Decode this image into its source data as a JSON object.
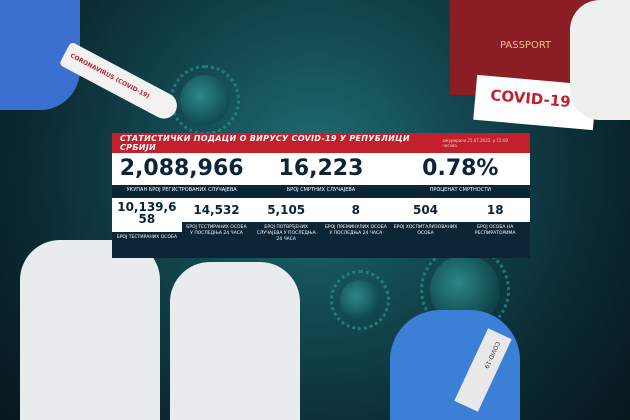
{
  "header": {
    "title": "СТАТИСТИЧКИ ПОДАЦИ О ВИРУСУ COVID-19 У РЕПУБЛИЦИ СРБИЈИ",
    "updated": "ажурирано 25.07.2022. у 15:00 часова"
  },
  "main": [
    {
      "value": "2,088,966",
      "label": "УКУПАН БРОЈ РЕГИСТРОВАНИХ СЛУЧАЈЕВА"
    },
    {
      "value": "16,223",
      "label": "БРОЈ СМРТНИХ СЛУЧАЈЕВА"
    },
    {
      "value": "0.78%",
      "label": "ПРОЦЕНАТ СМРТНОСТИ"
    }
  ],
  "details": [
    {
      "value": "10,139,658",
      "label": "БРОЈ ТЕСТИРАНИХ ОСОБА"
    },
    {
      "value": "14,532",
      "label": "БРОЈ ТЕСТИРАНИХ ОСОБА У ПОСЛЕДЊА 24 ЧАСА"
    },
    {
      "value": "5,105",
      "label": "БРОЈ ПОТВРЂЕНИХ СЛУЧАЈЕВА У ПОСЛЕДЊА 24 ЧАСА"
    },
    {
      "value": "8",
      "label": "БРОЈ ПРЕМИНУЛИХ ОСОБА У ПОСЛЕДЊА 24 ЧАСА"
    },
    {
      "value": "504",
      "label": "БРОЈ ХОСПИТАЛИЗОВАНИХ ОСОБА"
    },
    {
      "value": "18",
      "label": "БРОЈ ОСОБА НА РЕСПИРАТОРИМА"
    }
  ],
  "decor": {
    "tube_label": "CORONAVIRUS (COVID-19)",
    "passport": "PASSPORT",
    "card": "COVID-19",
    "tube2": "COVID-19"
  },
  "colors": {
    "accent": "#c3202e",
    "navy": "#0b2436"
  }
}
